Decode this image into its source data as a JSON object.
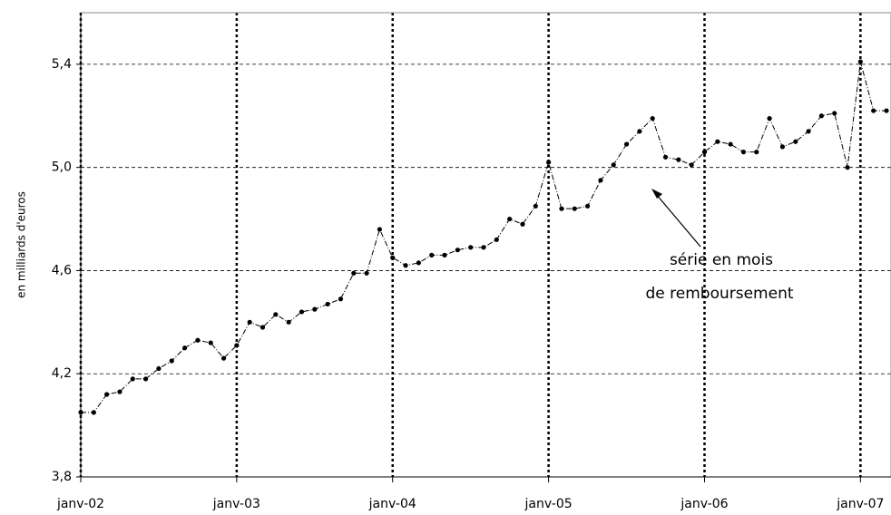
{
  "chart_data": {
    "type": "line",
    "ylabel": "en milliards d'euros",
    "annotation": [
      "série en mois",
      "de remboursement"
    ],
    "x": [
      "2002-01",
      "2002-02",
      "2002-03",
      "2002-04",
      "2002-05",
      "2002-06",
      "2002-07",
      "2002-08",
      "2002-09",
      "2002-10",
      "2002-11",
      "2002-12",
      "2003-01",
      "2003-02",
      "2003-03",
      "2003-04",
      "2003-05",
      "2003-06",
      "2003-07",
      "2003-08",
      "2003-09",
      "2003-10",
      "2003-11",
      "2003-12",
      "2004-01",
      "2004-02",
      "2004-03",
      "2004-04",
      "2004-05",
      "2004-06",
      "2004-07",
      "2004-08",
      "2004-09",
      "2004-10",
      "2004-11",
      "2004-12",
      "2005-01",
      "2005-02",
      "2005-03",
      "2005-04",
      "2005-05",
      "2005-06",
      "2005-07",
      "2005-08",
      "2005-09",
      "2005-10",
      "2005-11",
      "2005-12",
      "2006-01",
      "2006-02",
      "2006-03",
      "2006-04",
      "2006-05",
      "2006-06",
      "2006-07",
      "2006-08",
      "2006-09",
      "2006-10",
      "2006-11",
      "2006-12",
      "2007-01",
      "2007-02",
      "2007-03"
    ],
    "values": [
      4.05,
      4.05,
      4.12,
      4.13,
      4.18,
      4.18,
      4.22,
      4.25,
      4.3,
      4.33,
      4.32,
      4.26,
      4.31,
      4.4,
      4.38,
      4.43,
      4.4,
      4.44,
      4.45,
      4.47,
      4.49,
      4.59,
      4.59,
      4.76,
      4.65,
      4.62,
      4.63,
      4.66,
      4.66,
      4.68,
      4.69,
      4.69,
      4.72,
      4.8,
      4.78,
      4.85,
      5.02,
      4.84,
      4.84,
      4.85,
      4.95,
      5.01,
      5.09,
      5.14,
      5.19,
      5.04,
      5.03,
      5.01,
      5.06,
      5.1,
      5.09,
      5.06,
      5.06,
      5.19,
      5.08,
      5.1,
      5.14,
      5.2,
      5.21,
      5.0,
      5.41,
      5.22,
      5.22
    ],
    "color": "#000000",
    "xlim": [
      "2002-01",
      "2007-03"
    ],
    "xticks": [
      {
        "value": "2002-01",
        "label": "janv-02"
      },
      {
        "value": "2003-01",
        "label": "janv-03"
      },
      {
        "value": "2004-01",
        "label": "janv-04"
      },
      {
        "value": "2005-01",
        "label": "janv-05"
      },
      {
        "value": "2006-01",
        "label": "janv-06"
      },
      {
        "value": "2007-01",
        "label": "janv-07"
      }
    ],
    "ylim": [
      3.8,
      5.6
    ],
    "yticks": [
      {
        "value": 3.8,
        "label": "3,8"
      },
      {
        "value": 4.2,
        "label": "4,2"
      },
      {
        "value": 4.6,
        "label": "4,6"
      },
      {
        "value": 5.0,
        "label": "5,0"
      },
      {
        "value": 5.4,
        "label": "5,4"
      }
    ],
    "grid": true
  }
}
